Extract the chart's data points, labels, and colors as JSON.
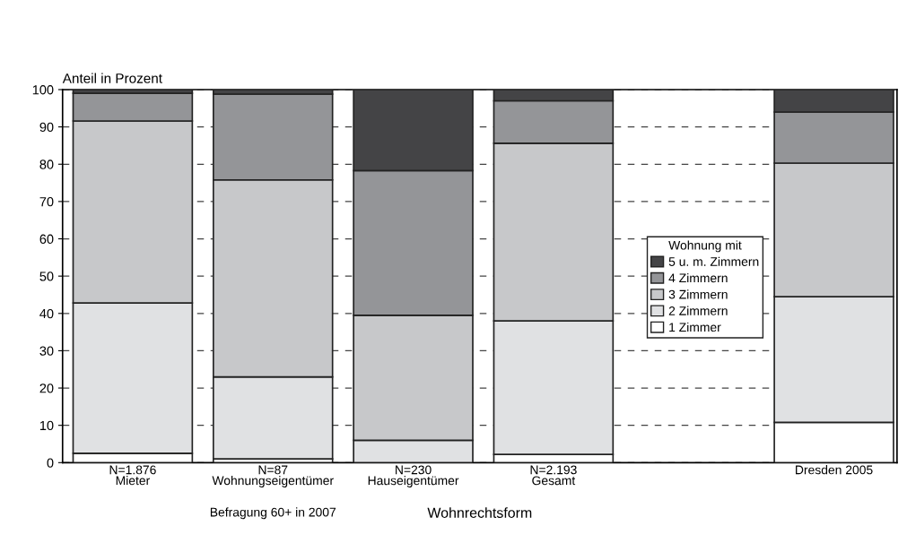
{
  "chart_data": {
    "type": "bar",
    "stacked": true,
    "ylabel": "Anteil in Prozent",
    "xlabel": "Wohnrechtsform",
    "legend_title": "Wohnung mit",
    "categories": [
      "N=1.876\nMieter",
      "N=87\nWohnungseigentümer",
      "N=230\nHauseigentümer",
      "N=2.193\nGesamt",
      null,
      "Dresden 2005"
    ],
    "series": [
      {
        "name": "1 Zimmer",
        "color": "#ffffff",
        "values": [
          2.5,
          1.0,
          0,
          2.2,
          null,
          10.8
        ]
      },
      {
        "name": "2 Zimmern",
        "color": "#e0e1e3",
        "values": [
          40.3,
          22.0,
          6.0,
          35.8,
          null,
          33.7
        ]
      },
      {
        "name": "3 Zimmern",
        "color": "#c7c8ca",
        "values": [
          48.8,
          52.8,
          33.5,
          47.6,
          null,
          35.8
        ]
      },
      {
        "name": "4 Zimmern",
        "color": "#949598",
        "values": [
          7.4,
          23.0,
          38.8,
          11.4,
          null,
          13.7
        ]
      },
      {
        "name": "5 u. m. Zimmern",
        "color": "#444446",
        "values": [
          1.0,
          1.2,
          21.7,
          3.0,
          null,
          6.0
        ]
      }
    ],
    "ylim": [
      0,
      100
    ],
    "yticks": [
      0,
      10,
      20,
      30,
      40,
      50,
      60,
      70,
      80,
      90,
      100
    ],
    "grid": "y",
    "legend": "center",
    "annotations": [
      "Befragung 60+ in 2007"
    ]
  }
}
